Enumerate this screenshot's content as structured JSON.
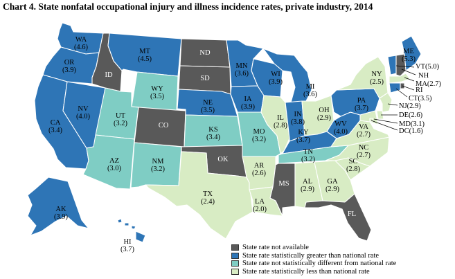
{
  "title": "Chart 4. State nonfatal occupational injury and illness incidence rates, private industry, 2014",
  "colors": {
    "na": "#595959",
    "greater": "#2e75b6",
    "not_different": "#7fcdc4",
    "less": "#d8ecc4"
  },
  "legend": [
    {
      "key": "na",
      "label": "State rate not available"
    },
    {
      "key": "greater",
      "label": "State rate statistically greater than national rate"
    },
    {
      "key": "not_different",
      "label": "State rate not statistically different from national rate"
    },
    {
      "key": "less",
      "label": "State rate statistically less than national rate"
    }
  ],
  "states": [
    {
      "id": "WA",
      "rate": "(4.6)",
      "category": "greater"
    },
    {
      "id": "OR",
      "rate": "(3.9)",
      "category": "greater"
    },
    {
      "id": "CA",
      "rate": "(3.4)",
      "category": "greater"
    },
    {
      "id": "NV",
      "rate": "(4.0)",
      "category": "greater"
    },
    {
      "id": "ID",
      "rate": "",
      "category": "na"
    },
    {
      "id": "MT",
      "rate": "(4.5)",
      "category": "greater"
    },
    {
      "id": "WY",
      "rate": "(3.5)",
      "category": "not_different"
    },
    {
      "id": "UT",
      "rate": "(3.2)",
      "category": "not_different"
    },
    {
      "id": "AZ",
      "rate": "(3.0)",
      "category": "not_different"
    },
    {
      "id": "CO",
      "rate": "",
      "category": "na"
    },
    {
      "id": "NM",
      "rate": "(3.2)",
      "category": "not_different"
    },
    {
      "id": "ND",
      "rate": "",
      "category": "na"
    },
    {
      "id": "SD",
      "rate": "",
      "category": "na"
    },
    {
      "id": "NE",
      "rate": "(3.5)",
      "category": "greater"
    },
    {
      "id": "KS",
      "rate": "(3.4)",
      "category": "not_different"
    },
    {
      "id": "OK",
      "rate": "",
      "category": "na"
    },
    {
      "id": "TX",
      "rate": "(2.4)",
      "category": "less"
    },
    {
      "id": "MN",
      "rate": "(3.6)",
      "category": "greater"
    },
    {
      "id": "IA",
      "rate": "(3.9)",
      "category": "greater"
    },
    {
      "id": "MO",
      "rate": "(3.2)",
      "category": "not_different"
    },
    {
      "id": "AR",
      "rate": "(2.6)",
      "category": "less"
    },
    {
      "id": "LA",
      "rate": "(2.0)",
      "category": "less"
    },
    {
      "id": "WI",
      "rate": "(3.9)",
      "category": "greater"
    },
    {
      "id": "IL",
      "rate": "(2.8)",
      "category": "less"
    },
    {
      "id": "MI",
      "rate": "(3.6)",
      "category": "greater"
    },
    {
      "id": "IN",
      "rate": "(3.8)",
      "category": "greater"
    },
    {
      "id": "OH",
      "rate": "(2.9)",
      "category": "less"
    },
    {
      "id": "KY",
      "rate": "(3.7)",
      "category": "greater"
    },
    {
      "id": "TN",
      "rate": "(3.2)",
      "category": "not_different"
    },
    {
      "id": "MS",
      "rate": "",
      "category": "na"
    },
    {
      "id": "AL",
      "rate": "(2.9)",
      "category": "less"
    },
    {
      "id": "GA",
      "rate": "(2.9)",
      "category": "less"
    },
    {
      "id": "FL",
      "rate": "",
      "category": "na"
    },
    {
      "id": "SC",
      "rate": "(2.8)",
      "category": "less"
    },
    {
      "id": "NC",
      "rate": "(2.7)",
      "category": "less"
    },
    {
      "id": "VA",
      "rate": "(2.7)",
      "category": "less"
    },
    {
      "id": "WV",
      "rate": "(4.0)",
      "category": "greater"
    },
    {
      "id": "PA",
      "rate": "(3.7)",
      "category": "greater"
    },
    {
      "id": "NY",
      "rate": "(2.5)",
      "category": "less"
    },
    {
      "id": "ME",
      "rate": "(5.3)",
      "category": "greater"
    },
    {
      "id": "VT",
      "rate": "(5.0)",
      "category": "greater"
    },
    {
      "id": "NH",
      "rate": "",
      "category": "na"
    },
    {
      "id": "MA",
      "rate": "(2.7)",
      "category": "less"
    },
    {
      "id": "RI",
      "rate": "",
      "category": "na"
    },
    {
      "id": "CT",
      "rate": "(3.5)",
      "category": "greater"
    },
    {
      "id": "NJ",
      "rate": "(2.9)",
      "category": "less"
    },
    {
      "id": "DE",
      "rate": "(2.6)",
      "category": "less"
    },
    {
      "id": "MD",
      "rate": "(3.1)",
      "category": "less"
    },
    {
      "id": "DC",
      "rate": "(1.6)",
      "category": "less"
    },
    {
      "id": "AK",
      "rate": "(3.9)",
      "category": "greater"
    },
    {
      "id": "HI",
      "rate": "(3.7)",
      "category": "greater"
    }
  ]
}
